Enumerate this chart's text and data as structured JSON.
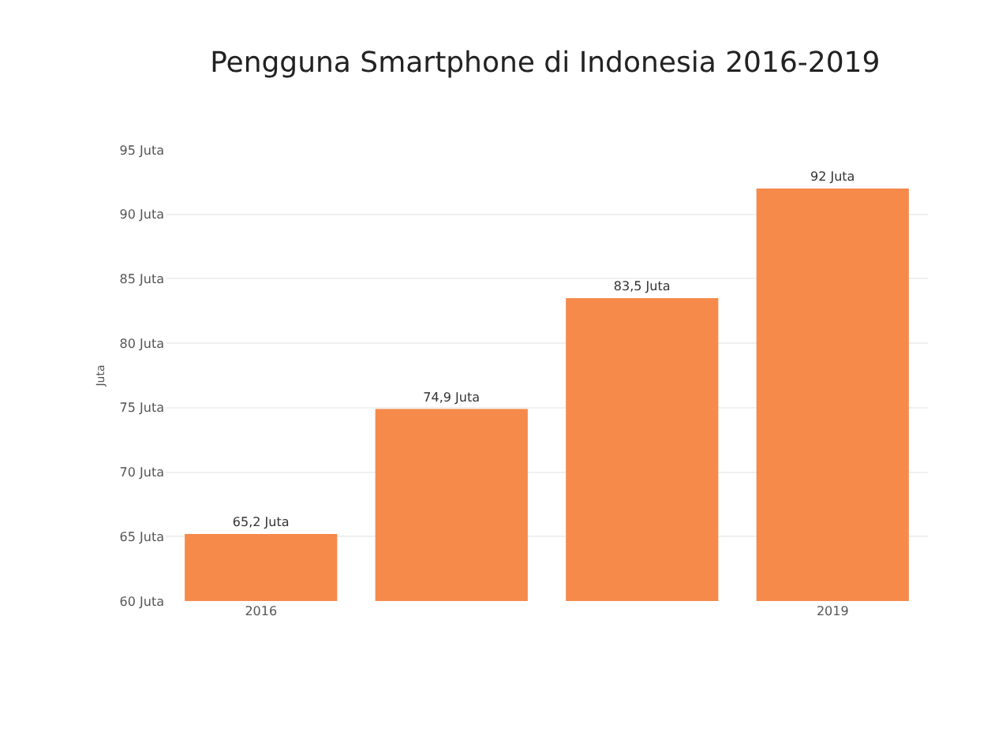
{
  "chart_data": {
    "type": "bar",
    "title": "Pengguna Smartphone di Indonesia 2016-2019",
    "ylabel": "Juta",
    "categories": [
      "2016",
      null,
      null,
      "2019"
    ],
    "values": [
      65.2,
      74.9,
      83.5,
      92
    ],
    "value_labels": [
      "65,2 Juta",
      "74,9 Juta",
      "83,5 Juta",
      "92 Juta"
    ],
    "color": "#f58a4b",
    "ylim": [
      60,
      95
    ],
    "yticks": [
      {
        "value": 60,
        "label": "60 Juta"
      },
      {
        "value": 65,
        "label": "65 Juta"
      },
      {
        "value": 70,
        "label": "70 Juta"
      },
      {
        "value": 75,
        "label": "75 Juta"
      },
      {
        "value": 80,
        "label": "80 Juta"
      },
      {
        "value": 85,
        "label": "85 Juta"
      },
      {
        "value": 90,
        "label": "90 Juta"
      },
      {
        "value": 95,
        "label": "95 Juta"
      }
    ],
    "grid": "y"
  }
}
